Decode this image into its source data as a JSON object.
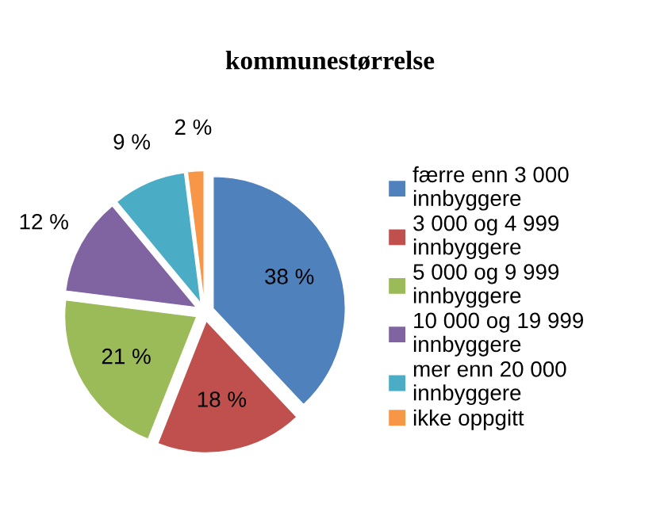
{
  "chart_data": {
    "type": "pie",
    "title": "kommunestørrelse",
    "categories": [
      "færre enn 3 000\ninnbyggere",
      "3 000 og 4 999\ninnbyggere",
      "5 000 og 9 999\ninnbyggere",
      "10 000 og 19 999\ninnbyggere",
      "mer enn 20 000\ninnbyggere",
      "ikke oppgitt"
    ],
    "values": [
      38,
      18,
      21,
      12,
      9,
      2
    ],
    "colors": [
      "#4f81bd",
      "#c0504d",
      "#9bbb59",
      "#8064a2",
      "#4bacc6",
      "#f79646"
    ],
    "value_labels": [
      "38 %",
      "18 %",
      "21 %",
      "12 %",
      "9 %",
      "2 %"
    ],
    "legend": "right"
  }
}
